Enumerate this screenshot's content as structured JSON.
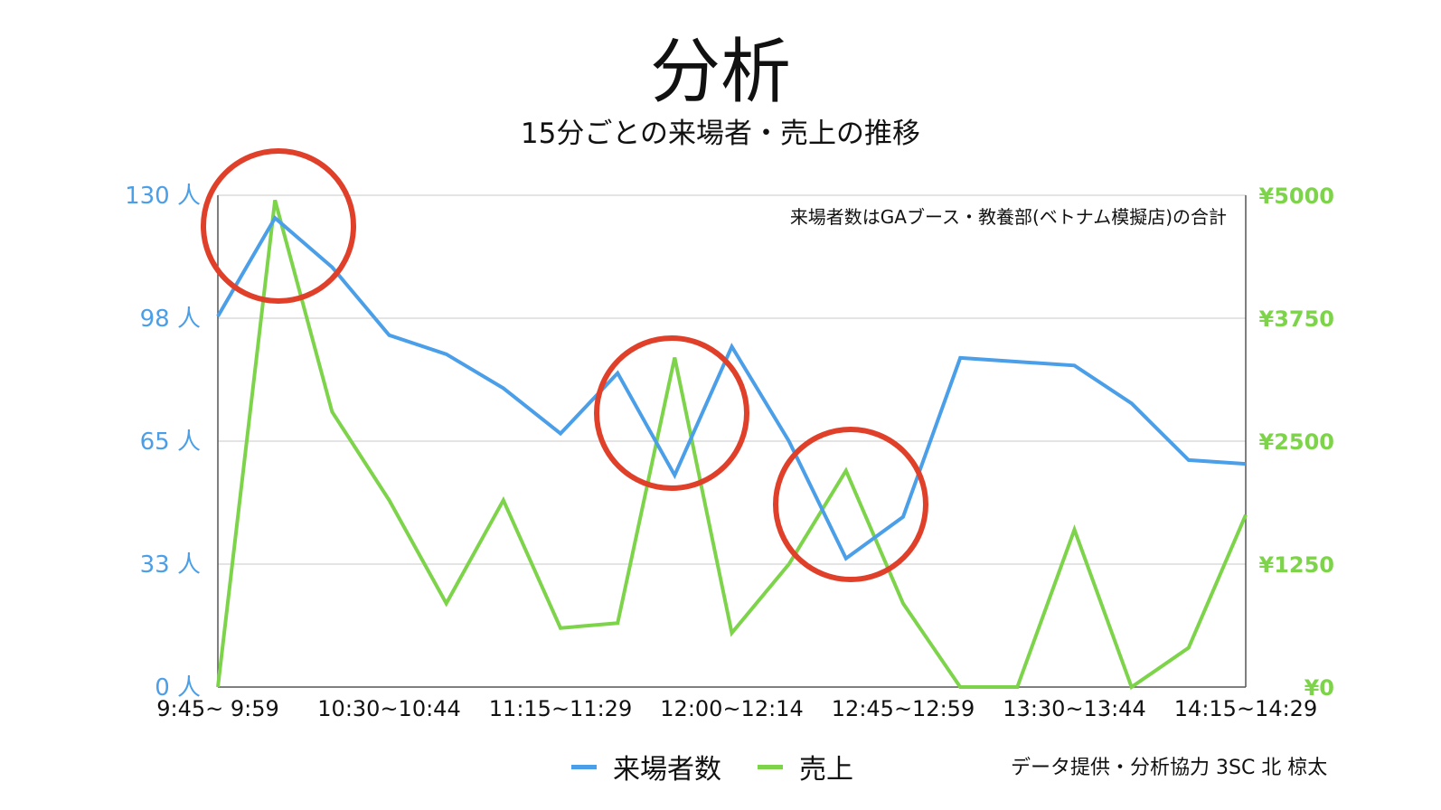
{
  "title": "分析",
  "subtitle": "15分ごとの来場者・売上の推移",
  "credit": "データ提供・分析協力 3SC 北 椋太",
  "chart_data": {
    "type": "line",
    "annotation": "来場者数はGAブース・教養部(ベトナム模擬店)の合計",
    "x_tick_labels": [
      "9:45~ 9:59",
      "10:30~10:44",
      "11:15~11:29",
      "12:00~12:14",
      "12:45~12:59",
      "13:30~13:44",
      "14:15~14:29"
    ],
    "y_left": {
      "ticks": [
        "0 人",
        "33 人",
        "65 人",
        "98 人",
        "130 人"
      ],
      "range": [
        0,
        130
      ],
      "color": "#4a9fe8"
    },
    "y_right": {
      "ticks": [
        "¥0",
        "¥1250",
        "¥2500",
        "¥3750",
        "¥5000"
      ],
      "range": [
        0,
        5000
      ],
      "color": "#7dd44a"
    },
    "grid": true,
    "series": [
      {
        "name": "来場者数",
        "axis": "left",
        "color": "#4a9fe8",
        "values": [
          98,
          124,
          111,
          93,
          88,
          79,
          67,
          83,
          56,
          90,
          65,
          34,
          45,
          87,
          86,
          85,
          75,
          60,
          59
        ]
      },
      {
        "name": "売上",
        "axis": "right",
        "color": "#7dd44a",
        "values": [
          0,
          4950,
          2800,
          1900,
          850,
          1900,
          600,
          650,
          3350,
          550,
          1250,
          2200,
          850,
          0,
          0,
          1600,
          0,
          400,
          1750
        ]
      }
    ],
    "highlights": [
      "circle",
      "circle",
      "circle"
    ],
    "legend_position": "bottom"
  }
}
